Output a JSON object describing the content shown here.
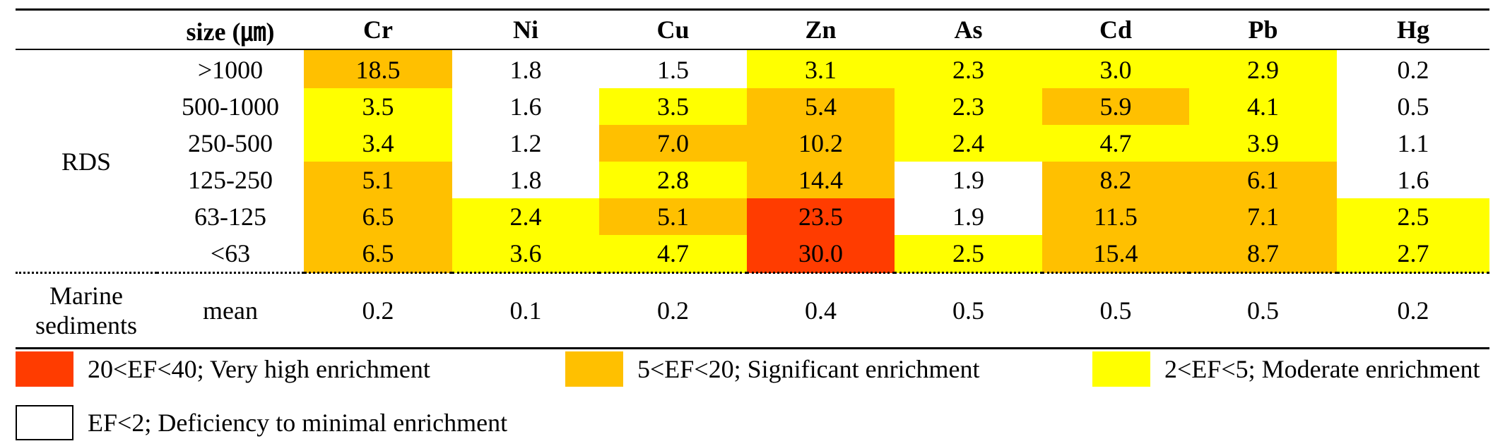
{
  "colors": {
    "very_high": "#ff3c00",
    "significant": "#ffc000",
    "moderate": "#ffff00",
    "minimal": "#ffffff"
  },
  "header": {
    "size_label": "size (㎛)",
    "columns": [
      "Cr",
      "Ni",
      "Cu",
      "Zn",
      "As",
      "Cd",
      "Pb",
      "Hg"
    ]
  },
  "rds": {
    "group_label": "RDS",
    "rows": [
      {
        "size": ">1000",
        "values": [
          "18.5",
          "1.8",
          "1.5",
          "3.1",
          "2.3",
          "3.0",
          "2.9",
          "0.2"
        ],
        "levels": [
          "significant",
          "minimal",
          "minimal",
          "moderate",
          "moderate",
          "moderate",
          "moderate",
          "minimal"
        ]
      },
      {
        "size": "500-1000",
        "values": [
          "3.5",
          "1.6",
          "3.5",
          "5.4",
          "2.3",
          "5.9",
          "4.1",
          "0.5"
        ],
        "levels": [
          "moderate",
          "minimal",
          "moderate",
          "significant",
          "moderate",
          "significant",
          "moderate",
          "minimal"
        ]
      },
      {
        "size": "250-500",
        "values": [
          "3.4",
          "1.2",
          "7.0",
          "10.2",
          "2.4",
          "4.7",
          "3.9",
          "1.1"
        ],
        "levels": [
          "moderate",
          "minimal",
          "significant",
          "significant",
          "moderate",
          "moderate",
          "moderate",
          "minimal"
        ]
      },
      {
        "size": "125-250",
        "values": [
          "5.1",
          "1.8",
          "2.8",
          "14.4",
          "1.9",
          "8.2",
          "6.1",
          "1.6"
        ],
        "levels": [
          "significant",
          "minimal",
          "moderate",
          "significant",
          "minimal",
          "significant",
          "significant",
          "minimal"
        ]
      },
      {
        "size": "63-125",
        "values": [
          "6.5",
          "2.4",
          "5.1",
          "23.5",
          "1.9",
          "11.5",
          "7.1",
          "2.5"
        ],
        "levels": [
          "significant",
          "moderate",
          "significant",
          "very_high",
          "minimal",
          "significant",
          "significant",
          "moderate"
        ]
      },
      {
        "size": "<63",
        "values": [
          "6.5",
          "3.6",
          "4.7",
          "30.0",
          "2.5",
          "15.4",
          "8.7",
          "2.7"
        ],
        "levels": [
          "significant",
          "moderate",
          "moderate",
          "very_high",
          "moderate",
          "significant",
          "significant",
          "moderate"
        ]
      }
    ]
  },
  "marine": {
    "group_label_line1": "Marine",
    "group_label_line2": "sediments",
    "size": "mean",
    "values": [
      "0.2",
      "0.1",
      "0.2",
      "0.4",
      "0.5",
      "0.5",
      "0.5",
      "0.2"
    ]
  },
  "legend": [
    {
      "label": "20<EF<40; Very high enrichment",
      "level": "very_high"
    },
    {
      "label": "5<EF<20; Significant enrichment",
      "level": "significant"
    },
    {
      "label": "2<EF<5; Moderate enrichment",
      "level": "moderate"
    },
    {
      "label": "EF<2; Deficiency to minimal enrichment",
      "level": "minimal"
    }
  ]
}
